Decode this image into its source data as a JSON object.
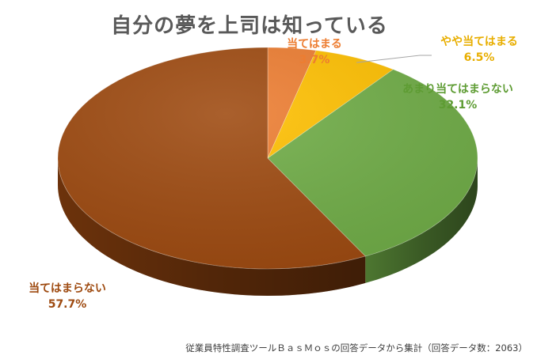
{
  "chart_data": {
    "type": "pie",
    "title": "自分の夢を上司は知っている",
    "style": "3d",
    "categories": [
      "当てはまる",
      "やや当てはまる",
      "あまり当てはまらない",
      "当てはまらない"
    ],
    "values": [
      3.7,
      6.5,
      32.1,
      57.7
    ],
    "value_labels": [
      "3.7%",
      "6.5%",
      "32.1%",
      "57.7%"
    ],
    "colors": [
      "#ED7D31",
      "#FFC000",
      "#70AD47",
      "#9E4A10"
    ],
    "legend": "none",
    "source": "従業員特性調査ツールＢａｓＭｏｓの回答データから集計（回答データ数：2063）"
  }
}
